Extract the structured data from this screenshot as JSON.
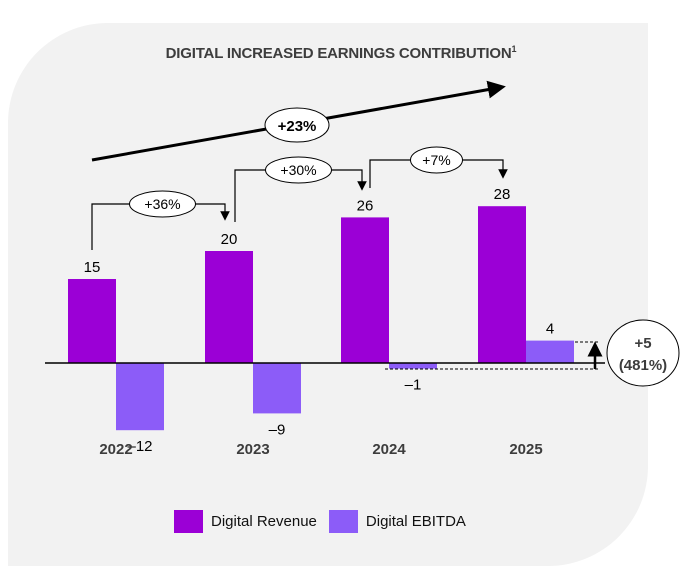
{
  "chart_data": {
    "type": "bar",
    "title": "DIGITAL INCREASED EARNINGS CONTRIBUTION",
    "title_superscript": "1",
    "categories": [
      "2022",
      "2023",
      "2024",
      "2025"
    ],
    "series": [
      {
        "name": "Digital Revenue",
        "color": "#9b00d6",
        "values": [
          15,
          20,
          26,
          28
        ],
        "labels": [
          "15",
          "20",
          "26",
          "28"
        ]
      },
      {
        "name": "Digital EBITDA",
        "color": "#8c5cf8",
        "values": [
          -12,
          -9,
          -1,
          4
        ],
        "labels": [
          "-12",
          "-9",
          "-1",
          "4"
        ]
      }
    ],
    "annotations": {
      "overall_growth": "+23%",
      "yoy_growth": [
        "+36%",
        "+30%",
        "+7%"
      ],
      "ebitda_change": [
        "+5",
        "(481%)"
      ]
    },
    "xlabel": "",
    "ylabel": "",
    "ylim": [
      -15,
      35
    ],
    "grid": false,
    "legend_position": "bottom"
  }
}
